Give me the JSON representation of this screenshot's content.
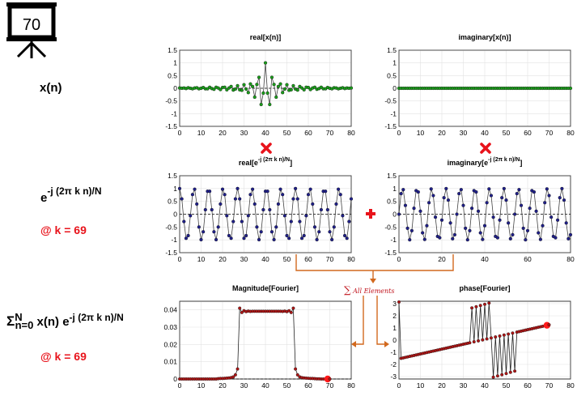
{
  "badge": {
    "number": "70"
  },
  "labels": {
    "row1": "x(n)",
    "row2_base": "e",
    "row2_exp": "-j (2π k n)/N",
    "row2_k": "@ k = 69",
    "row3_sigma": "Σ",
    "row3_upper": "N",
    "row3_lower": "n=0",
    "row3_body": "x(n) e",
    "row3_exp": "-j (2π k n)/N",
    "row3_k": "@ k = 69"
  },
  "annotations": {
    "sum_label": "All Elements",
    "sum_symbol": "∑"
  },
  "colors": {
    "green": "#1a9e1a",
    "navy": "#1f1f8a",
    "red_dot": "#b01515",
    "arrow": "#d2691e",
    "op_red": "#e8131b"
  },
  "chart_data": [
    {
      "id": "p1",
      "type": "scatter",
      "title": "real[x(n)]",
      "xlim": [
        0,
        80
      ],
      "ylim": [
        -1.5,
        1.5
      ],
      "xticks": [
        "0",
        "10",
        "20",
        "30",
        "40",
        "50",
        "60",
        "70",
        "80"
      ],
      "yticks": [
        "1.5",
        "1",
        "0.5",
        "0",
        "-0.5",
        "-1",
        "-1.5"
      ],
      "series": [
        {
          "color": "green",
          "x": [
            0,
            1,
            2,
            3,
            4,
            5,
            6,
            7,
            8,
            9,
            10,
            11,
            12,
            13,
            14,
            15,
            16,
            17,
            18,
            19,
            20,
            21,
            22,
            23,
            24,
            25,
            26,
            27,
            28,
            29,
            30,
            31,
            32,
            33,
            34,
            35,
            36,
            37,
            38,
            39,
            40,
            41,
            42,
            43,
            44,
            45,
            46,
            47,
            48,
            49,
            50,
            51,
            52,
            53,
            54,
            55,
            56,
            57,
            58,
            59,
            60,
            61,
            62,
            63,
            64,
            65,
            66,
            67,
            68,
            69,
            70,
            71,
            72,
            73,
            74,
            75,
            76,
            77,
            78,
            79,
            80
          ],
          "y": [
            0.01,
            0.0,
            0.01,
            -0.01,
            0.02,
            0.0,
            -0.02,
            0.01,
            0.02,
            -0.02,
            0.0,
            0.03,
            -0.02,
            -0.02,
            0.04,
            -0.01,
            -0.04,
            0.04,
            0.01,
            -0.05,
            0.03,
            0.04,
            -0.06,
            0.01,
            0.07,
            -0.07,
            -0.03,
            0.1,
            -0.06,
            -0.08,
            0.14,
            -0.03,
            -0.17,
            0.17,
            0.07,
            -0.35,
            0.15,
            0.43,
            -0.64,
            -0.19,
            1.0,
            -0.19,
            -0.64,
            0.43,
            0.15,
            -0.35,
            0.07,
            0.17,
            -0.17,
            -0.03,
            0.14,
            -0.08,
            -0.06,
            0.1,
            -0.03,
            -0.07,
            0.07,
            0.01,
            -0.06,
            0.04,
            0.03,
            -0.05,
            0.01,
            0.04,
            -0.04,
            -0.01,
            0.04,
            -0.02,
            -0.02,
            0.03,
            0.0,
            -0.02,
            0.02,
            0.01,
            -0.02,
            0.0,
            0.02,
            -0.01,
            0.01,
            0.0,
            0.01
          ]
        }
      ]
    },
    {
      "id": "p2",
      "type": "scatter",
      "title": "imaginary[x(n)]",
      "xlim": [
        0,
        80
      ],
      "ylim": [
        -1.5,
        1.5
      ],
      "xticks": [
        "0",
        "10",
        "20",
        "30",
        "40",
        "50",
        "60",
        "70",
        "80"
      ],
      "yticks": [
        "1.5",
        "1",
        "0.5",
        "0",
        "-0.5",
        "-1",
        "-1.5"
      ],
      "series": [
        {
          "color": "green",
          "rule": "zero",
          "n": 81
        }
      ]
    },
    {
      "id": "p3",
      "type": "scatter",
      "title": "real[e-j (2π k n)/N]",
      "xlim": [
        0,
        80
      ],
      "ylim": [
        -1.5,
        1.5
      ],
      "xticks": [
        "0",
        "10",
        "20",
        "30",
        "40",
        "50",
        "60",
        "70",
        "80"
      ],
      "yticks": [
        "1.5",
        "1",
        "0.5",
        "0",
        "-0.5",
        "-1",
        "-1.5"
      ],
      "series": [
        {
          "color": "navy",
          "rule": "cos",
          "k": 69,
          "N": 81,
          "n": 81
        }
      ]
    },
    {
      "id": "p4",
      "type": "scatter",
      "title": "imaginary[e-j (2π k n)/N]",
      "xlim": [
        0,
        80
      ],
      "ylim": [
        -1.5,
        1.5
      ],
      "xticks": [
        "0",
        "20",
        "40",
        "60",
        "80"
      ],
      "yticks": [
        "1.5",
        "1",
        "0.5",
        "0",
        "-0.5",
        "-1",
        "-1.5"
      ],
      "series": [
        {
          "color": "navy",
          "rule": "-sin",
          "k": 69,
          "N": 81,
          "n": 81
        }
      ]
    },
    {
      "id": "p5",
      "type": "line",
      "title": "Magnitude[Fourier]",
      "xlim": [
        0,
        80
      ],
      "ylim": [
        0,
        0.045
      ],
      "xticks": [
        "0",
        "10",
        "20",
        "30",
        "40",
        "50",
        "60",
        "70",
        "80"
      ],
      "yticks": [
        "0.04",
        "0.03",
        "0.02",
        "0.01",
        "0"
      ],
      "series": [
        {
          "color": "red_dot",
          "x": [
            0,
            1,
            2,
            3,
            4,
            5,
            6,
            7,
            8,
            9,
            10,
            11,
            12,
            13,
            14,
            15,
            16,
            17,
            18,
            19,
            20,
            21,
            22,
            23,
            24,
            25,
            26,
            27,
            28,
            29,
            30,
            31,
            32,
            33,
            34,
            35,
            36,
            37,
            38,
            39,
            40,
            41,
            42,
            43,
            44,
            45,
            46,
            47,
            48,
            49,
            50,
            51,
            52,
            53,
            54,
            55,
            56,
            57,
            58,
            59,
            60,
            61,
            62,
            63,
            64,
            65,
            66,
            67,
            68,
            69,
            70
          ],
          "y": [
            0.0,
            0.0,
            0.0,
            0.0,
            0.0,
            0.0,
            0.0,
            0.0,
            0.0,
            0.0,
            0.0,
            0.0,
            0.0,
            0.0,
            0.0,
            0.0,
            0.0,
            0.0,
            0.0002,
            0.0003,
            0.0003,
            0.0004,
            0.0005,
            0.0006,
            0.0008,
            0.0012,
            0.0024,
            0.0058,
            0.041,
            0.0385,
            0.0395,
            0.039,
            0.0393,
            0.0391,
            0.0392,
            0.0392,
            0.0392,
            0.0392,
            0.0392,
            0.0392,
            0.0392,
            0.0392,
            0.0392,
            0.0392,
            0.0392,
            0.0392,
            0.0392,
            0.0392,
            0.0391,
            0.0393,
            0.039,
            0.0395,
            0.0385,
            0.041,
            0.0058,
            0.0024,
            0.0012,
            0.0008,
            0.0006,
            0.0005,
            0.0004,
            0.0003,
            0.0003,
            0.0002,
            0.0001,
            0.0001,
            0.0,
            0.0,
            0.0,
            0.0,
            0.0
          ],
          "current_index": 69
        }
      ]
    },
    {
      "id": "p6",
      "type": "line",
      "title": "phase[Fourier]",
      "xlim": [
        0,
        80
      ],
      "ylim": [
        -3.2,
        3.2
      ],
      "xticks": [
        "0",
        "10",
        "20",
        "30",
        "40",
        "50",
        "60",
        "70",
        "80"
      ],
      "yticks": [
        "3",
        "2",
        "1",
        "0",
        "-1",
        "-2",
        "-3"
      ],
      "series": [
        {
          "color": "red_dot",
          "x": [
            0,
            1,
            2,
            3,
            4,
            5,
            6,
            7,
            8,
            9,
            10,
            11,
            12,
            13,
            14,
            15,
            16,
            17,
            18,
            19,
            20,
            21,
            22,
            23,
            24,
            25,
            26,
            27,
            28,
            29,
            30,
            31,
            32,
            33,
            34,
            35,
            36,
            37,
            38,
            39,
            40,
            41,
            42,
            43,
            44,
            45,
            46,
            47,
            48,
            49,
            50,
            51,
            52,
            53,
            54,
            55,
            56,
            57,
            58,
            59,
            60,
            61,
            62,
            63,
            64,
            65,
            66,
            67,
            68,
            69,
            70
          ],
          "y": [
            3.14,
            -1.5,
            -1.46,
            -1.42,
            -1.38,
            -1.34,
            -1.3,
            -1.26,
            -1.22,
            -1.18,
            -1.14,
            -1.1,
            -1.06,
            -1.02,
            -0.98,
            -0.94,
            -0.9,
            -0.86,
            -0.82,
            -0.78,
            -0.74,
            -0.7,
            -0.66,
            -0.62,
            -0.58,
            -0.54,
            -0.5,
            -0.46,
            -0.42,
            -0.38,
            -0.34,
            -0.3,
            -0.26,
            -0.22,
            2.65,
            -0.14,
            2.75,
            -0.06,
            2.85,
            0.02,
            2.95,
            0.1,
            3.05,
            0.18,
            -3.05,
            0.26,
            -2.95,
            0.34,
            -2.85,
            0.42,
            -2.75,
            0.5,
            -2.65,
            0.58,
            -2.55,
            0.66,
            0.7,
            0.74,
            0.78,
            0.82,
            0.86,
            0.9,
            0.94,
            0.98,
            1.02,
            1.06,
            1.1,
            1.14,
            1.18,
            1.22,
            1.26
          ],
          "current_index": 69
        }
      ]
    }
  ]
}
